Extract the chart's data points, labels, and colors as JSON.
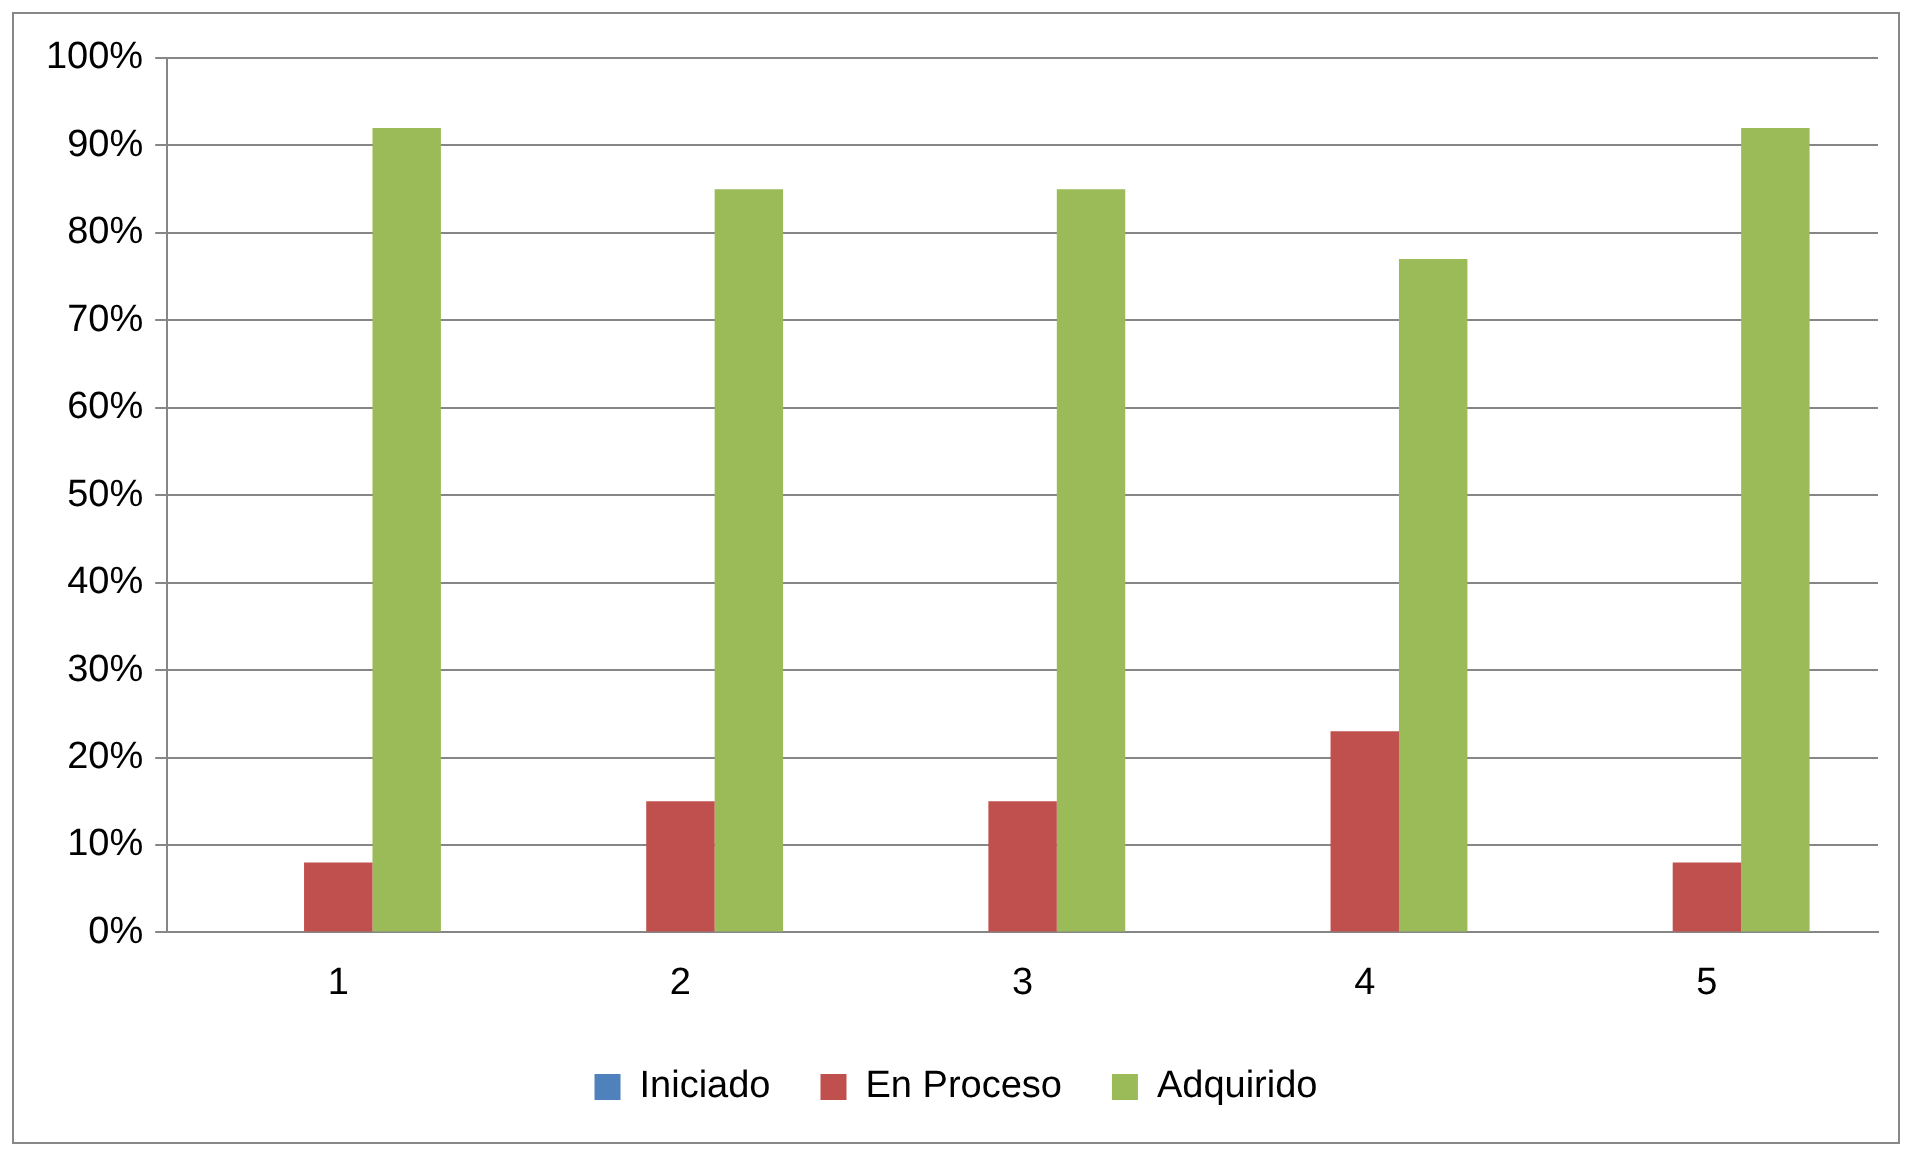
{
  "chart_data": {
    "type": "bar",
    "categories": [
      "1",
      "2",
      "3",
      "4",
      "5"
    ],
    "series": [
      {
        "name": "Iniciado",
        "color": "#4f81bd",
        "values": [
          0,
          0,
          0,
          0,
          0
        ]
      },
      {
        "name": "En Proceso",
        "color": "#c0504d",
        "values": [
          8,
          15,
          15,
          23,
          8
        ]
      },
      {
        "name": "Adquirido",
        "color": "#9bbb59",
        "values": [
          92,
          85,
          85,
          77,
          92
        ]
      }
    ],
    "ylim": [
      0,
      100
    ],
    "yticks": [
      {
        "value": 0,
        "label": "0%"
      },
      {
        "value": 10,
        "label": "10%"
      },
      {
        "value": 20,
        "label": "20%"
      },
      {
        "value": 30,
        "label": "30%"
      },
      {
        "value": 40,
        "label": "40%"
      },
      {
        "value": 50,
        "label": "50%"
      },
      {
        "value": 60,
        "label": "60%"
      },
      {
        "value": 70,
        "label": "70%"
      },
      {
        "value": 80,
        "label": "80%"
      },
      {
        "value": 90,
        "label": "90%"
      },
      {
        "value": 100,
        "label": "100%"
      }
    ],
    "grid": "y",
    "legend": "bottom"
  }
}
